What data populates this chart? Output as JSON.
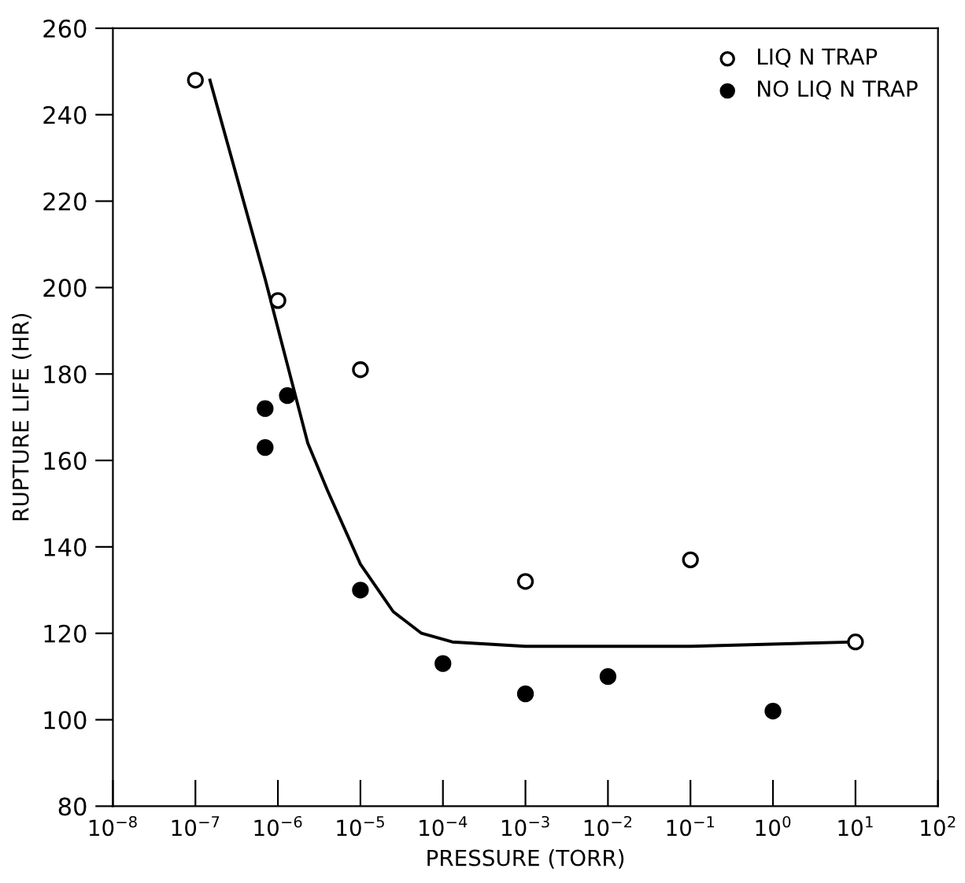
{
  "chart_data": {
    "type": "scatter",
    "xlabel": "PRESSURE (TORR)",
    "ylabel": "RUPTURE LIFE (HR)",
    "log": "x",
    "xlim": [
      1e-08,
      100
    ],
    "ylim": [
      80,
      260
    ],
    "xticks": [
      {
        "value": 1e-08,
        "label": "10$^{−8}$"
      },
      {
        "value": 1e-07,
        "label": "10$^{−7}$"
      },
      {
        "value": 1e-06,
        "label": "10$^{−6}$"
      },
      {
        "value": 1e-05,
        "label": "10$^{−5}$"
      },
      {
        "value": 0.0001,
        "label": "10$^{−4}$"
      },
      {
        "value": 0.001,
        "label": "10$^{−3}$"
      },
      {
        "value": 0.01,
        "label": "10$^{−2}$"
      },
      {
        "value": 0.1,
        "label": "10$^{−1}$"
      },
      {
        "value": 1,
        "label": "10$^{0}$"
      },
      {
        "value": 10,
        "label": "10$^{1}$"
      },
      {
        "value": 100,
        "label": "10$^{2}$"
      }
    ],
    "yticks": [
      80,
      100,
      120,
      140,
      160,
      180,
      200,
      220,
      240,
      260
    ],
    "grid": false,
    "legend": "top right",
    "marker": "circle",
    "series": [
      {
        "name": "LIQ N TRAP",
        "color": "#ffffff",
        "x": [
          1e-07,
          1e-06,
          1e-05,
          0.001,
          0.1,
          10
        ],
        "values": [
          248,
          197,
          181,
          132,
          137,
          118
        ]
      },
      {
        "name": "NO LIQ N TRAP",
        "color": "#000000",
        "x": [
          7e-07,
          7e-07,
          1.3e-06,
          1e-05,
          0.0001,
          0.001,
          0.01,
          1
        ],
        "values": [
          172,
          163,
          175,
          130,
          113,
          106,
          110,
          102
        ]
      },
      {
        "type": "line",
        "color": "#000000",
        "marker": "none",
        "line_style": "solid",
        "x": [
          1.5e-07,
          7e-07,
          2.3e-06,
          4e-06,
          1e-05,
          2.5e-05,
          5.5e-05,
          0.00013,
          0.001,
          0.1,
          10
        ],
        "values": [
          248,
          202,
          164,
          153,
          136,
          125,
          120,
          118,
          117,
          117,
          118
        ]
      }
    ]
  }
}
